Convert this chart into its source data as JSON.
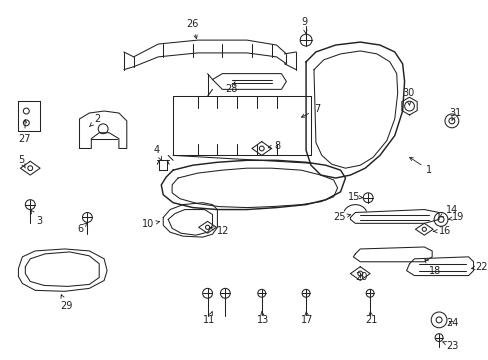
{
  "bg_color": "#ffffff",
  "fg_color": "#222222",
  "figsize": [
    4.89,
    3.6
  ],
  "dpi": 100,
  "lw": 0.75,
  "label_fs": 7.0
}
